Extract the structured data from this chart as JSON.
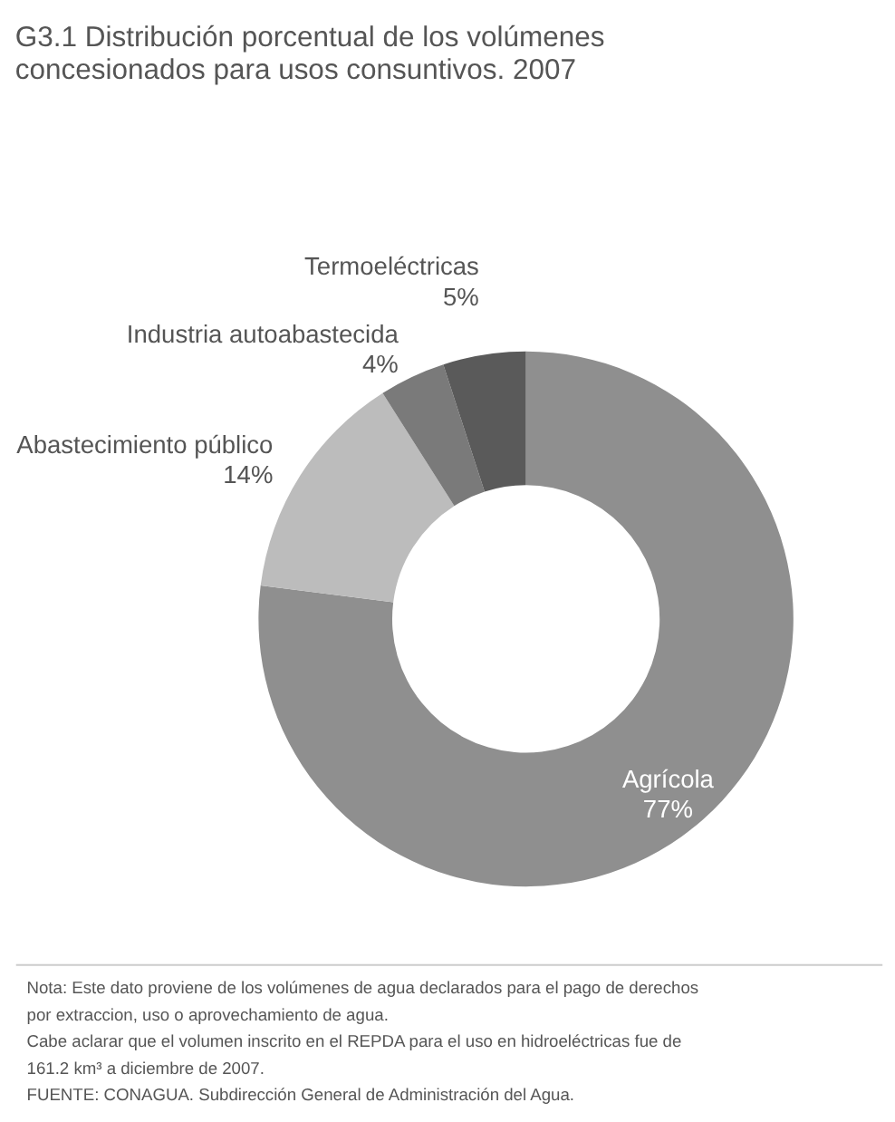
{
  "chart_data": {
    "type": "donut",
    "title": "G3.1 Distribución porcentual de los volúmenes concesionados para usos consuntivos. 2007",
    "categories": [
      "Agrícola",
      "Abastecimiento público",
      "Industria autoabastecida",
      "Termoeléctricas"
    ],
    "values": [
      77,
      14,
      4,
      5
    ],
    "colors": [
      "#8f8f8f",
      "#bcbcbc",
      "#7a7a7a",
      "#5a5a5a"
    ],
    "value_labels": [
      "77%",
      "14%",
      "4%",
      "5%"
    ],
    "legend": false,
    "annotations": [
      "Nota: Este dato proviene de los volúmenes de agua declarados para el pago de derechos por extraccion, uso o aprovechamiento de agua.",
      "Cabe aclarar que el volumen inscrito en el REPDA para el uso en hidroeléctricas fue de 161.2 km³ a diciembre de 2007.",
      "FUENTE: CONAGUA. Subdirección General de Administración del Agua."
    ]
  }
}
